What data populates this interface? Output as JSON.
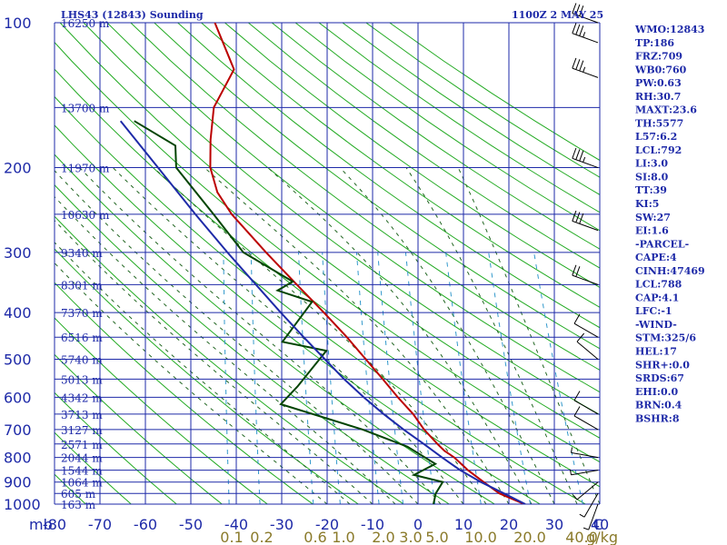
{
  "header": {
    "title": "LHS43 (12843) Sounding",
    "time": "1100Z  2 MAY 25"
  },
  "indices": [
    "WMO:12843",
    "TP:186",
    "FRZ:709",
    "WB0:760",
    "PW:0.63",
    "RH:30.7",
    "MAXT:23.6",
    "TH:5577",
    "L57:6.2",
    "LCL:792",
    "LI:3.0",
    "SI:8.0",
    "TT:39",
    "KI:5",
    "SW:27",
    "EI:1.6",
    "-PARCEL-",
    "CAPE:4",
    "CINH:47469",
    "LCL:788",
    "CAP:4.1",
    "LFC:-1",
    "-WIND-",
    "STM:325/6",
    "HEL:17",
    "SHR+:0.0",
    "SRDS:67",
    "EHI:0.0",
    "BRN:0.4",
    "BSHR:8"
  ],
  "colors": {
    "isobar": "#1e2aa8",
    "isotherm": "#1e2aa8",
    "dry_adiabat": "#22aa22",
    "moist_adiabat": "#226622",
    "mixing_ratio": "#3399cc",
    "temperature": "#bb0000",
    "dewpoint": "#004400",
    "parcel": "#1e2aa8",
    "wind": "#000000"
  },
  "chart_data": {
    "type": "skew-t",
    "pressure_unit_label": "mb",
    "pressure_levels": [
      100,
      200,
      300,
      400,
      500,
      600,
      700,
      800,
      900,
      1000
    ],
    "pressure_range": [
      100,
      1000
    ],
    "temperature_ticks": [
      -80,
      -70,
      -60,
      -50,
      -40,
      -30,
      -20,
      -10,
      0,
      10,
      20,
      30,
      40
    ],
    "temperature_range": [
      -80,
      40
    ],
    "temperature_axis_end_label": "C",
    "mixing_ratio_labels": [
      "0.1",
      "0.2",
      "0.6",
      "1.0",
      "2.0",
      "3.0",
      "5.0",
      "10.0",
      "20.0",
      "40.0"
    ],
    "mixing_ratio_unit": "g/kg",
    "height_labels": [
      {
        "p": 100,
        "text": "16250 m"
      },
      {
        "p": 150,
        "text": "13700 m"
      },
      {
        "p": 200,
        "text": "11970 m"
      },
      {
        "p": 250,
        "text": "10630 m"
      },
      {
        "p": 300,
        "text": "9340 m"
      },
      {
        "p": 350,
        "text": "8301 m"
      },
      {
        "p": 400,
        "text": "7370 m"
      },
      {
        "p": 450,
        "text": "6516 m"
      },
      {
        "p": 500,
        "text": "5740 m"
      },
      {
        "p": 550,
        "text": "5013 m"
      },
      {
        "p": 600,
        "text": "4342 m"
      },
      {
        "p": 650,
        "text": "3713 m"
      },
      {
        "p": 700,
        "text": "3127 m"
      },
      {
        "p": 750,
        "text": "2571 m"
      },
      {
        "p": 800,
        "text": "2044 m"
      },
      {
        "p": 850,
        "text": "1544 m"
      },
      {
        "p": 900,
        "text": "1064 m"
      },
      {
        "p": 950,
        "text": "605 m"
      },
      {
        "p": 1000,
        "text": "163 m"
      }
    ],
    "series": [
      {
        "name": "Temperature",
        "points": [
          {
            "p": 1000,
            "t": 23.4
          },
          {
            "p": 950,
            "t": 17.5
          },
          {
            "p": 900,
            "t": 13.6
          },
          {
            "p": 850,
            "t": 9.7
          },
          {
            "p": 800,
            "t": 6.2
          },
          {
            "p": 775,
            "t": 3.8
          },
          {
            "p": 750,
            "t": 2.0
          },
          {
            "p": 700,
            "t": -1.5
          },
          {
            "p": 650,
            "t": -4.5
          },
          {
            "p": 600,
            "t": -8.5
          },
          {
            "p": 550,
            "t": -12.5
          },
          {
            "p": 500,
            "t": -17.0
          },
          {
            "p": 450,
            "t": -22.0
          },
          {
            "p": 400,
            "t": -28.0
          },
          {
            "p": 350,
            "t": -35.0
          },
          {
            "p": 300,
            "t": -43.0
          },
          {
            "p": 250,
            "t": -52.0
          },
          {
            "p": 225,
            "t": -56.0
          },
          {
            "p": 200,
            "t": -58.5
          },
          {
            "p": 175,
            "t": -59.5
          },
          {
            "p": 150,
            "t": -60.0
          },
          {
            "p": 125,
            "t": -57.0
          },
          {
            "p": 100,
            "t": -63.0
          }
        ]
      },
      {
        "name": "Dewpoint",
        "points": [
          {
            "p": 1000,
            "t": 3.4
          },
          {
            "p": 950,
            "t": 3.5
          },
          {
            "p": 900,
            "t": 4.6
          },
          {
            "p": 870,
            "t": -2.0
          },
          {
            "p": 825,
            "t": 2.3
          },
          {
            "p": 760,
            "t": -4.5
          },
          {
            "p": 700,
            "t": -15.0
          },
          {
            "p": 620,
            "t": -34.0
          },
          {
            "p": 570,
            "t": -31.0
          },
          {
            "p": 480,
            "t": -26.0
          },
          {
            "p": 460,
            "t": -36.0
          },
          {
            "p": 380,
            "t": -31.0
          },
          {
            "p": 360,
            "t": -39.0
          },
          {
            "p": 345,
            "t": -36.0
          },
          {
            "p": 300,
            "t": -48.0
          },
          {
            "p": 250,
            "t": -56.0
          },
          {
            "p": 200,
            "t": -66.0
          },
          {
            "p": 180,
            "t": -67.0
          },
          {
            "p": 160,
            "t": -77.0
          }
        ]
      },
      {
        "name": "Parcel",
        "points": [
          {
            "p": 1000,
            "t": 23.6
          },
          {
            "p": 950,
            "t": 18.5
          },
          {
            "p": 900,
            "t": 13.0
          },
          {
            "p": 850,
            "t": 8.0
          },
          {
            "p": 800,
            "t": 3.5
          },
          {
            "p": 750,
            "t": -1.0
          },
          {
            "p": 700,
            "t": -6.0
          },
          {
            "p": 650,
            "t": -11.0
          },
          {
            "p": 600,
            "t": -16.0
          },
          {
            "p": 550,
            "t": -21.0
          },
          {
            "p": 500,
            "t": -26.0
          },
          {
            "p": 450,
            "t": -31.5
          },
          {
            "p": 400,
            "t": -37.5
          },
          {
            "p": 350,
            "t": -44.0
          },
          {
            "p": 300,
            "t": -51.5
          },
          {
            "p": 250,
            "t": -60.0
          },
          {
            "p": 200,
            "t": -70.0
          },
          {
            "p": 160,
            "t": -80.0
          }
        ]
      }
    ],
    "wind_barbs": [
      {
        "p": 1000,
        "dir": 200,
        "spd": 5
      },
      {
        "p": 950,
        "dir": 210,
        "spd": 5
      },
      {
        "p": 900,
        "dir": 230,
        "spd": 5
      },
      {
        "p": 850,
        "dir": 260,
        "spd": 5
      },
      {
        "p": 800,
        "dir": 280,
        "spd": 5
      },
      {
        "p": 700,
        "dir": 300,
        "spd": 10
      },
      {
        "p": 650,
        "dir": 300,
        "spd": 10
      },
      {
        "p": 500,
        "dir": 310,
        "spd": 10
      },
      {
        "p": 450,
        "dir": 300,
        "spd": 10
      },
      {
        "p": 350,
        "dir": 290,
        "spd": 20
      },
      {
        "p": 270,
        "dir": 290,
        "spd": 30
      },
      {
        "p": 200,
        "dir": 290,
        "spd": 35
      },
      {
        "p": 130,
        "dir": 290,
        "spd": 35
      },
      {
        "p": 110,
        "dir": 290,
        "spd": 35
      },
      {
        "p": 100,
        "dir": 290,
        "spd": 30
      }
    ]
  }
}
